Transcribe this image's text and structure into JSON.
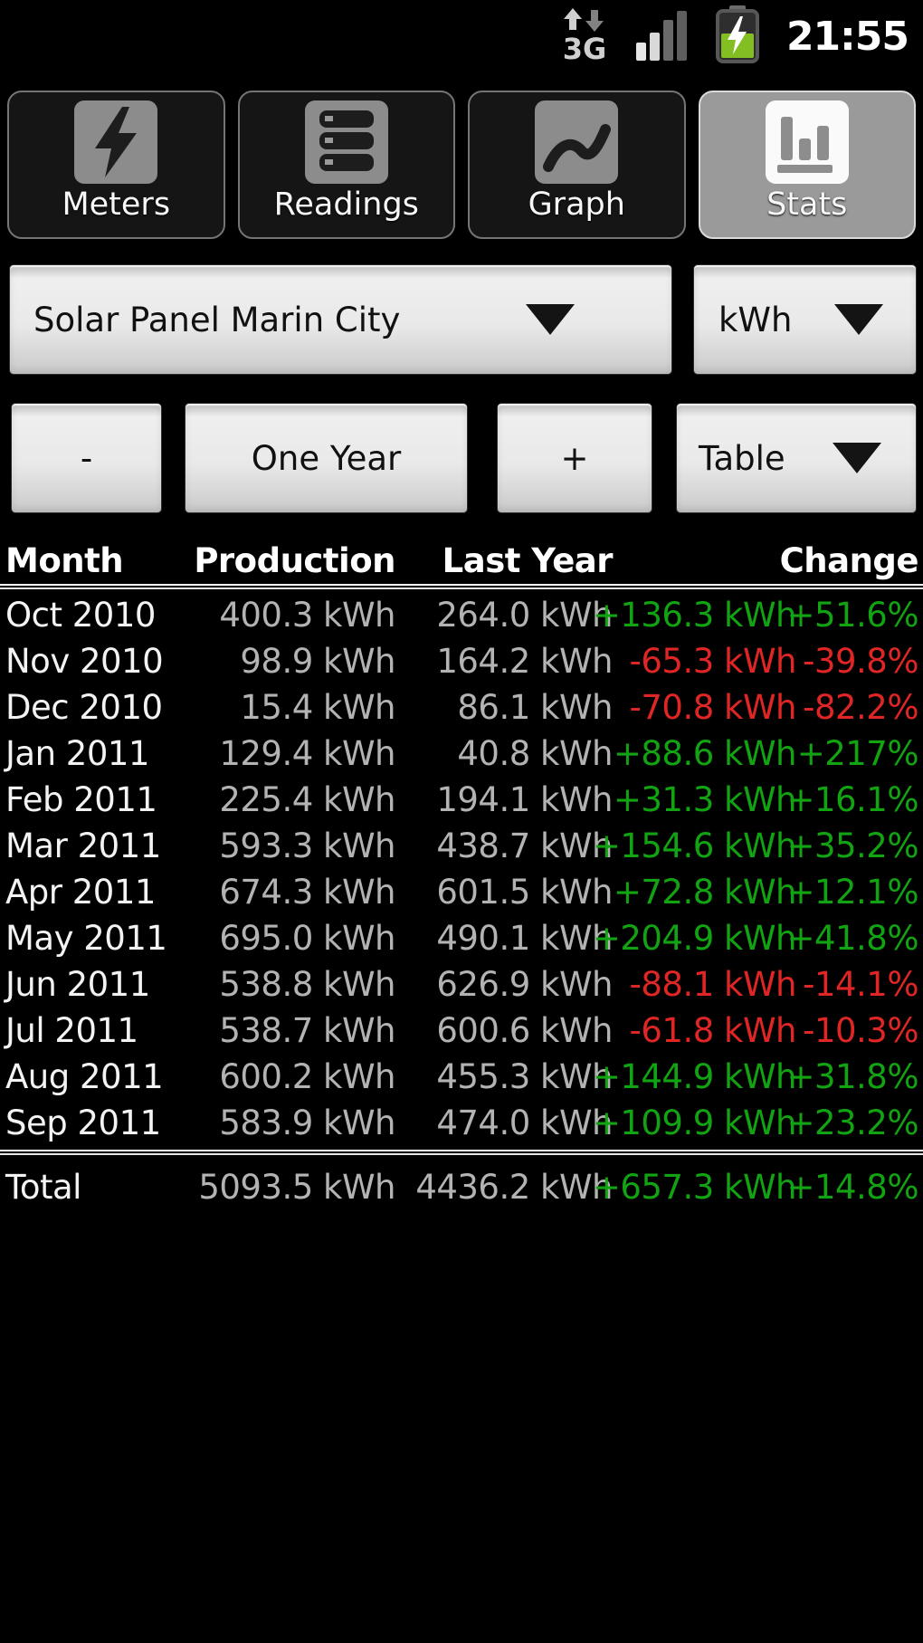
{
  "status_bar": {
    "time": "21:55",
    "network_icon": "3g-data-updown",
    "signal_icon": "signal-strength-2-of-4",
    "battery_icon": "battery-charging"
  },
  "tabs": [
    {
      "label": "Meters",
      "icon": "lightning-bolt-icon",
      "selected": false
    },
    {
      "label": "Readings",
      "icon": "meter-stack-icon",
      "selected": false
    },
    {
      "label": "Graph",
      "icon": "line-graph-icon",
      "selected": false
    },
    {
      "label": "Stats",
      "icon": "bar-chart-icon",
      "selected": true
    }
  ],
  "filters": {
    "meter_selector_value": "Solar Panel Marin City",
    "unit_selector_value": "kWh",
    "zoom_out_label": "-",
    "period_label": "One Year",
    "zoom_in_label": "+",
    "view_selector_value": "Table"
  },
  "table": {
    "headers": {
      "month": "Month",
      "production": "Production",
      "last_year": "Last Year",
      "change": "Change"
    },
    "rows": [
      {
        "month": "Oct 2010",
        "production": "400.3 kWh",
        "last_year": "264.0 kWh",
        "change_kwh": "+136.3 kWh",
        "change_pct": "+51.6%",
        "positive": true
      },
      {
        "month": "Nov 2010",
        "production": "98.9 kWh",
        "last_year": "164.2 kWh",
        "change_kwh": "-65.3 kWh",
        "change_pct": "-39.8%",
        "positive": false
      },
      {
        "month": "Dec 2010",
        "production": "15.4 kWh",
        "last_year": "86.1 kWh",
        "change_kwh": "-70.8 kWh",
        "change_pct": "-82.2%",
        "positive": false
      },
      {
        "month": "Jan 2011",
        "production": "129.4 kWh",
        "last_year": "40.8 kWh",
        "change_kwh": "+88.6 kWh",
        "change_pct": "+217%",
        "positive": true
      },
      {
        "month": "Feb 2011",
        "production": "225.4 kWh",
        "last_year": "194.1 kWh",
        "change_kwh": "+31.3 kWh",
        "change_pct": "+16.1%",
        "positive": true
      },
      {
        "month": "Mar 2011",
        "production": "593.3 kWh",
        "last_year": "438.7 kWh",
        "change_kwh": "+154.6 kWh",
        "change_pct": "+35.2%",
        "positive": true
      },
      {
        "month": "Apr 2011",
        "production": "674.3 kWh",
        "last_year": "601.5 kWh",
        "change_kwh": "+72.8 kWh",
        "change_pct": "+12.1%",
        "positive": true
      },
      {
        "month": "May 2011",
        "production": "695.0 kWh",
        "last_year": "490.1 kWh",
        "change_kwh": "+204.9 kWh",
        "change_pct": "+41.8%",
        "positive": true
      },
      {
        "month": "Jun 2011",
        "production": "538.8 kWh",
        "last_year": "626.9 kWh",
        "change_kwh": "-88.1 kWh",
        "change_pct": "-14.1%",
        "positive": false
      },
      {
        "month": "Jul 2011",
        "production": "538.7 kWh",
        "last_year": "600.6 kWh",
        "change_kwh": "-61.8 kWh",
        "change_pct": "-10.3%",
        "positive": false
      },
      {
        "month": "Aug 2011",
        "production": "600.2 kWh",
        "last_year": "455.3 kWh",
        "change_kwh": "+144.9 kWh",
        "change_pct": "+31.8%",
        "positive": true
      },
      {
        "month": "Sep 2011",
        "production": "583.9 kWh",
        "last_year": "474.0 kWh",
        "change_kwh": "+109.9 kWh",
        "change_pct": "+23.2%",
        "positive": true
      }
    ],
    "total": {
      "month": "Total",
      "production": "5093.5 kWh",
      "last_year": "4436.2 kWh",
      "change_kwh": "+657.3 kWh",
      "change_pct": "+14.8%",
      "positive": true
    }
  },
  "colors": {
    "positive": "#12a312",
    "negative": "#e02525",
    "battery_green": "#83bf22"
  }
}
